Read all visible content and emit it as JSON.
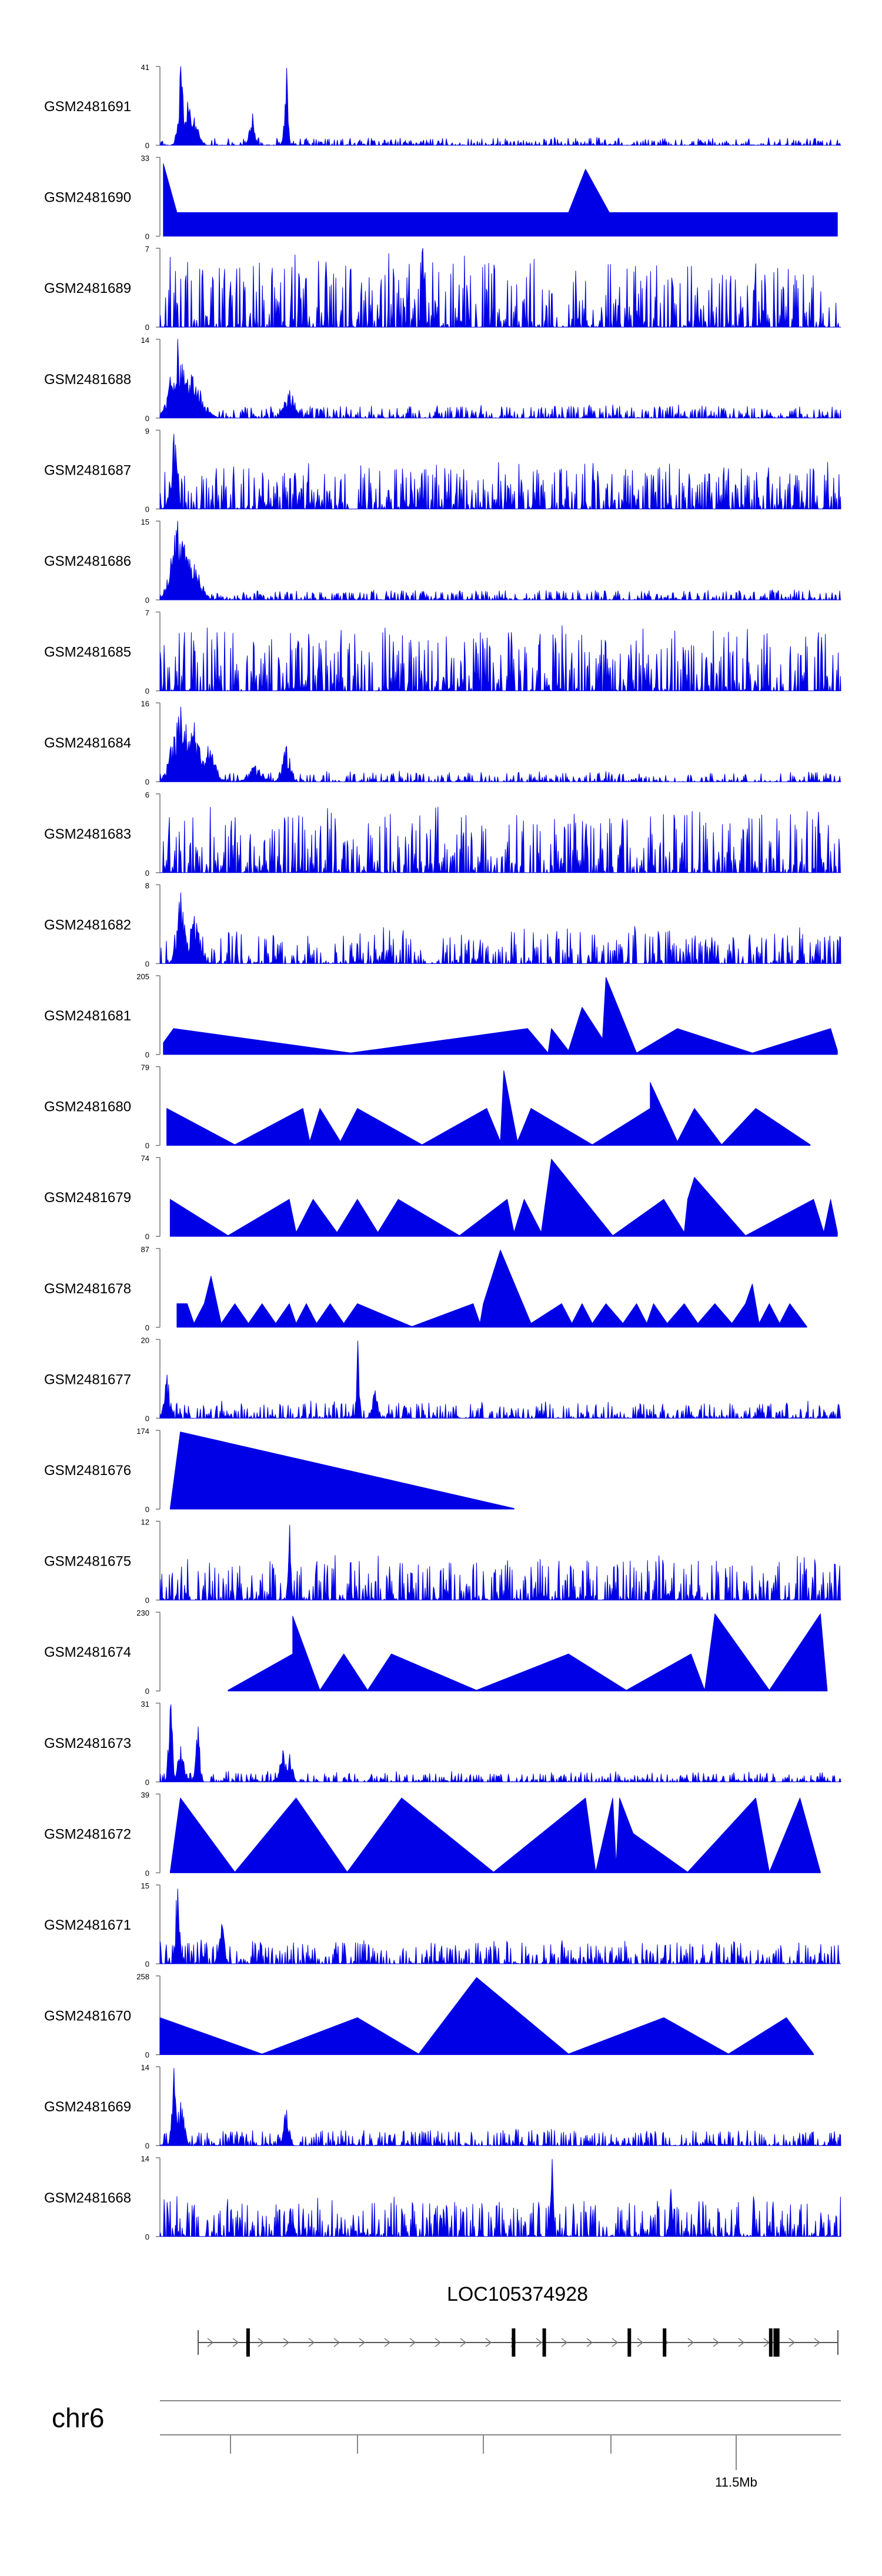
{
  "chart_data": {
    "type": "area",
    "title": "",
    "region": {
      "chromosome": "chr6",
      "tick_label": "11.5Mb"
    },
    "gene": {
      "name": "LOC105374928",
      "exons": [
        0.078,
        0.493,
        0.541,
        0.674,
        0.729,
        0.895,
        0.902,
        0.906
      ]
    },
    "color": "#0000e6",
    "tracks": [
      {
        "name": "GSM2481691",
        "ymax": 41,
        "ymin": 0,
        "shape": "spiky",
        "seed": 11,
        "base": 0.06,
        "peaks": [
          [
            0.03,
            1.0,
            0.004
          ],
          [
            0.04,
            0.55,
            0.006
          ],
          [
            0.05,
            0.35,
            0.006
          ],
          [
            0.135,
            0.4,
            0.004
          ],
          [
            0.185,
            0.98,
            0.0025
          ]
        ]
      },
      {
        "name": "GSM2481690",
        "ymax": 33,
        "ymin": 0,
        "shape": "tri",
        "seed": 12,
        "peaks": [
          [
            0.005,
            0.92
          ],
          [
            0.025,
            0.3
          ],
          [
            0.06,
            0.3
          ],
          [
            0.095,
            0.3
          ],
          [
            0.13,
            0.3
          ],
          [
            0.165,
            0.3
          ],
          [
            0.2,
            0.3
          ],
          [
            0.25,
            0.3
          ],
          [
            0.31,
            0.3
          ],
          [
            0.375,
            0.3
          ],
          [
            0.41,
            0.3
          ],
          [
            0.46,
            0.3
          ],
          [
            0.5,
            0.3
          ],
          [
            0.545,
            0.3
          ],
          [
            0.6,
            0.3
          ],
          [
            0.625,
            0.85
          ],
          [
            0.66,
            0.3
          ],
          [
            0.72,
            0.3
          ],
          [
            0.77,
            0.3
          ],
          [
            0.82,
            0.3
          ],
          [
            0.87,
            0.3
          ],
          [
            0.915,
            0.3
          ],
          [
            0.96,
            0.3
          ],
          [
            0.995,
            0.3
          ]
        ]
      },
      {
        "name": "GSM2481689",
        "ymax": 7,
        "ymin": 0,
        "shape": "spiky",
        "seed": 13,
        "base": 0.55,
        "peaks": [
          [
            0.385,
            1.0,
            0.002
          ]
        ]
      },
      {
        "name": "GSM2481688",
        "ymax": 14,
        "ymin": 0,
        "shape": "spiky",
        "seed": 14,
        "base": 0.1,
        "peaks": [
          [
            0.025,
            1.0,
            0.01
          ],
          [
            0.045,
            0.55,
            0.015
          ],
          [
            0.19,
            0.35,
            0.008
          ]
        ]
      },
      {
        "name": "GSM2481687",
        "ymax": 9,
        "ymin": 0,
        "shape": "spiky",
        "seed": 15,
        "base": 0.35,
        "peaks": [
          [
            0.02,
            0.95,
            0.005
          ]
        ]
      },
      {
        "name": "GSM2481686",
        "ymax": 15,
        "ymin": 0,
        "shape": "spiky",
        "seed": 16,
        "base": 0.08,
        "peaks": [
          [
            0.025,
            1.0,
            0.01
          ],
          [
            0.035,
            0.7,
            0.012
          ],
          [
            0.05,
            0.45,
            0.01
          ]
        ]
      },
      {
        "name": "GSM2481685",
        "ymax": 7,
        "ymin": 0,
        "shape": "spiky",
        "seed": 17,
        "base": 0.5,
        "peaks": []
      },
      {
        "name": "GSM2481684",
        "ymax": 16,
        "ymin": 0,
        "shape": "spiky",
        "seed": 18,
        "base": 0.08,
        "peaks": [
          [
            0.03,
            0.95,
            0.012
          ],
          [
            0.05,
            0.75,
            0.012
          ],
          [
            0.07,
            0.45,
            0.01
          ],
          [
            0.185,
            0.45,
            0.006
          ],
          [
            0.14,
            0.2,
            0.01
          ]
        ]
      },
      {
        "name": "GSM2481683",
        "ymax": 6,
        "ymin": 0,
        "shape": "spiky",
        "seed": 19,
        "base": 0.5,
        "peaks": []
      },
      {
        "name": "GSM2481682",
        "ymax": 8,
        "ymin": 0,
        "shape": "spiky",
        "seed": 20,
        "base": 0.28,
        "peaks": [
          [
            0.03,
            0.9,
            0.006
          ],
          [
            0.05,
            0.6,
            0.008
          ]
        ]
      },
      {
        "name": "GSM2481681",
        "ymax": 205,
        "ymin": 0,
        "shape": "tri",
        "seed": 21,
        "peaks": [
          [
            0.005,
            0.15
          ],
          [
            0.02,
            0.33
          ],
          [
            0.28,
            0.02
          ],
          [
            0.54,
            0.33
          ],
          [
            0.57,
            0.02
          ],
          [
            0.575,
            0.33
          ],
          [
            0.6,
            0.05
          ],
          [
            0.62,
            0.6
          ],
          [
            0.65,
            0.2
          ],
          [
            0.655,
            0.98
          ],
          [
            0.7,
            0.02
          ],
          [
            0.76,
            0.33
          ],
          [
            0.87,
            0.02
          ],
          [
            0.985,
            0.33
          ],
          [
            0.995,
            0.05
          ]
        ]
      },
      {
        "name": "GSM2481680",
        "ymax": 79,
        "ymin": 0,
        "shape": "tri",
        "seed": 22,
        "peaks": [
          [
            0.01,
            0.47
          ],
          [
            0.11,
            0.01
          ],
          [
            0.21,
            0.47
          ],
          [
            0.22,
            0.05
          ],
          [
            0.235,
            0.47
          ],
          [
            0.265,
            0.05
          ],
          [
            0.29,
            0.47
          ],
          [
            0.385,
            0.01
          ],
          [
            0.48,
            0.47
          ],
          [
            0.5,
            0.05
          ],
          [
            0.505,
            0.95
          ],
          [
            0.525,
            0.05
          ],
          [
            0.545,
            0.47
          ],
          [
            0.635,
            0.01
          ],
          [
            0.72,
            0.47
          ],
          [
            0.72,
            0.8
          ],
          [
            0.76,
            0.05
          ],
          [
            0.785,
            0.47
          ],
          [
            0.825,
            0.01
          ],
          [
            0.875,
            0.47
          ],
          [
            0.955,
            0.01
          ]
        ]
      },
      {
        "name": "GSM2481679",
        "ymax": 74,
        "ymin": 0,
        "shape": "tri",
        "seed": 23,
        "peaks": [
          [
            0.015,
            0.47
          ],
          [
            0.1,
            0.01
          ],
          [
            0.19,
            0.47
          ],
          [
            0.2,
            0.05
          ],
          [
            0.225,
            0.47
          ],
          [
            0.26,
            0.05
          ],
          [
            0.29,
            0.47
          ],
          [
            0.32,
            0.05
          ],
          [
            0.35,
            0.47
          ],
          [
            0.44,
            0.01
          ],
          [
            0.51,
            0.47
          ],
          [
            0.52,
            0.05
          ],
          [
            0.535,
            0.47
          ],
          [
            0.56,
            0.05
          ],
          [
            0.575,
            0.98
          ],
          [
            0.665,
            0.01
          ],
          [
            0.74,
            0.47
          ],
          [
            0.77,
            0.05
          ],
          [
            0.775,
            0.47
          ],
          [
            0.785,
            0.75
          ],
          [
            0.86,
            0.01
          ],
          [
            0.96,
            0.47
          ],
          [
            0.975,
            0.05
          ],
          [
            0.985,
            0.47
          ],
          [
            0.995,
            0.05
          ]
        ]
      },
      {
        "name": "GSM2481678",
        "ymax": 87,
        "ymin": 0,
        "shape": "tri",
        "seed": 24,
        "peaks": [
          [
            0.025,
            0.3
          ],
          [
            0.04,
            0.3
          ],
          [
            0.05,
            0.05
          ],
          [
            0.065,
            0.3
          ],
          [
            0.075,
            0.65
          ],
          [
            0.09,
            0.05
          ],
          [
            0.11,
            0.3
          ],
          [
            0.13,
            0.05
          ],
          [
            0.15,
            0.3
          ],
          [
            0.17,
            0.05
          ],
          [
            0.19,
            0.3
          ],
          [
            0.2,
            0.05
          ],
          [
            0.215,
            0.3
          ],
          [
            0.23,
            0.05
          ],
          [
            0.25,
            0.3
          ],
          [
            0.27,
            0.05
          ],
          [
            0.29,
            0.3
          ],
          [
            0.37,
            0.01
          ],
          [
            0.46,
            0.3
          ],
          [
            0.47,
            0.05
          ],
          [
            0.475,
            0.3
          ],
          [
            0.5,
            0.98
          ],
          [
            0.545,
            0.05
          ],
          [
            0.59,
            0.3
          ],
          [
            0.605,
            0.05
          ],
          [
            0.62,
            0.3
          ],
          [
            0.635,
            0.05
          ],
          [
            0.655,
            0.3
          ],
          [
            0.68,
            0.05
          ],
          [
            0.7,
            0.3
          ],
          [
            0.715,
            0.05
          ],
          [
            0.725,
            0.3
          ],
          [
            0.745,
            0.05
          ],
          [
            0.77,
            0.3
          ],
          [
            0.79,
            0.05
          ],
          [
            0.815,
            0.3
          ],
          [
            0.84,
            0.05
          ],
          [
            0.86,
            0.3
          ],
          [
            0.87,
            0.55
          ],
          [
            0.88,
            0.05
          ],
          [
            0.895,
            0.3
          ],
          [
            0.91,
            0.05
          ],
          [
            0.925,
            0.3
          ],
          [
            0.95,
            0.01
          ]
        ]
      },
      {
        "name": "GSM2481677",
        "ymax": 20,
        "ymin": 0,
        "shape": "spiky",
        "seed": 25,
        "base": 0.13,
        "peaks": [
          [
            0.01,
            0.55,
            0.004
          ],
          [
            0.29,
            0.98,
            0.002
          ],
          [
            0.315,
            0.35,
            0.004
          ]
        ]
      },
      {
        "name": "GSM2481676",
        "ymax": 174,
        "ymin": 0,
        "shape": "tri",
        "seed": 26,
        "peaks": [
          [
            0.015,
            0.01
          ],
          [
            0.03,
            0.98
          ],
          [
            0.52,
            0.01
          ]
        ]
      },
      {
        "name": "GSM2481675",
        "ymax": 12,
        "ymin": 0,
        "shape": "spiky",
        "seed": 27,
        "base": 0.35,
        "peaks": [
          [
            0.19,
            0.95,
            0.002
          ]
        ]
      },
      {
        "name": "GSM2481674",
        "ymax": 230,
        "ymin": 0,
        "shape": "tri",
        "seed": 28,
        "peaks": [
          [
            0.1,
            0.01
          ],
          [
            0.195,
            0.47
          ],
          [
            0.195,
            0.95
          ],
          [
            0.235,
            0.01
          ],
          [
            0.27,
            0.47
          ],
          [
            0.305,
            0.01
          ],
          [
            0.34,
            0.47
          ],
          [
            0.465,
            0.01
          ],
          [
            0.6,
            0.47
          ],
          [
            0.685,
            0.01
          ],
          [
            0.78,
            0.47
          ],
          [
            0.8,
            0.01
          ],
          [
            0.815,
            0.98
          ],
          [
            0.895,
            0.01
          ],
          [
            0.97,
            0.98
          ],
          [
            0.98,
            0.01
          ]
        ]
      },
      {
        "name": "GSM2481673",
        "ymax": 31,
        "ymin": 0,
        "shape": "spiky",
        "seed": 29,
        "base": 0.08,
        "peaks": [
          [
            0.015,
            0.98,
            0.003
          ],
          [
            0.03,
            0.45,
            0.005
          ],
          [
            0.055,
            0.7,
            0.003
          ],
          [
            0.18,
            0.4,
            0.005
          ],
          [
            0.19,
            0.35,
            0.004
          ]
        ]
      },
      {
        "name": "GSM2481672",
        "ymax": 39,
        "ymin": 0,
        "shape": "tri",
        "seed": 30,
        "peaks": [
          [
            0.015,
            0.01
          ],
          [
            0.03,
            0.95
          ],
          [
            0.11,
            0.01
          ],
          [
            0.2,
            0.95
          ],
          [
            0.275,
            0.01
          ],
          [
            0.355,
            0.95
          ],
          [
            0.49,
            0.01
          ],
          [
            0.625,
            0.95
          ],
          [
            0.64,
            0.01
          ],
          [
            0.665,
            0.95
          ],
          [
            0.67,
            0.1
          ],
          [
            0.675,
            0.95
          ],
          [
            0.695,
            0.5
          ],
          [
            0.775,
            0.01
          ],
          [
            0.875,
            0.95
          ],
          [
            0.895,
            0.01
          ],
          [
            0.94,
            0.95
          ],
          [
            0.97,
            0.01
          ]
        ]
      },
      {
        "name": "GSM2481671",
        "ymax": 15,
        "ymin": 0,
        "shape": "spiky",
        "seed": 31,
        "base": 0.18,
        "peaks": [
          [
            0.025,
            0.95,
            0.003
          ],
          [
            0.09,
            0.5,
            0.004
          ]
        ]
      },
      {
        "name": "GSM2481670",
        "ymax": 258,
        "ymin": 0,
        "shape": "tri",
        "seed": 32,
        "peaks": [
          [
            0.0,
            0.47
          ],
          [
            0.15,
            0.01
          ],
          [
            0.29,
            0.47
          ],
          [
            0.38,
            0.01
          ],
          [
            0.465,
            0.98
          ],
          [
            0.6,
            0.01
          ],
          [
            0.74,
            0.47
          ],
          [
            0.835,
            0.01
          ],
          [
            0.92,
            0.47
          ],
          [
            0.96,
            0.01
          ]
        ]
      },
      {
        "name": "GSM2481669",
        "ymax": 14,
        "ymin": 0,
        "shape": "spiky",
        "seed": 33,
        "base": 0.13,
        "peaks": [
          [
            0.02,
            0.98,
            0.003
          ],
          [
            0.03,
            0.55,
            0.005
          ],
          [
            0.185,
            0.45,
            0.004
          ]
        ]
      },
      {
        "name": "GSM2481668",
        "ymax": 14,
        "ymin": 0,
        "shape": "spiky",
        "seed": 34,
        "base": 0.3,
        "peaks": [
          [
            0.575,
            0.98,
            0.002
          ],
          [
            0.75,
            0.6,
            0.003
          ]
        ]
      }
    ]
  }
}
